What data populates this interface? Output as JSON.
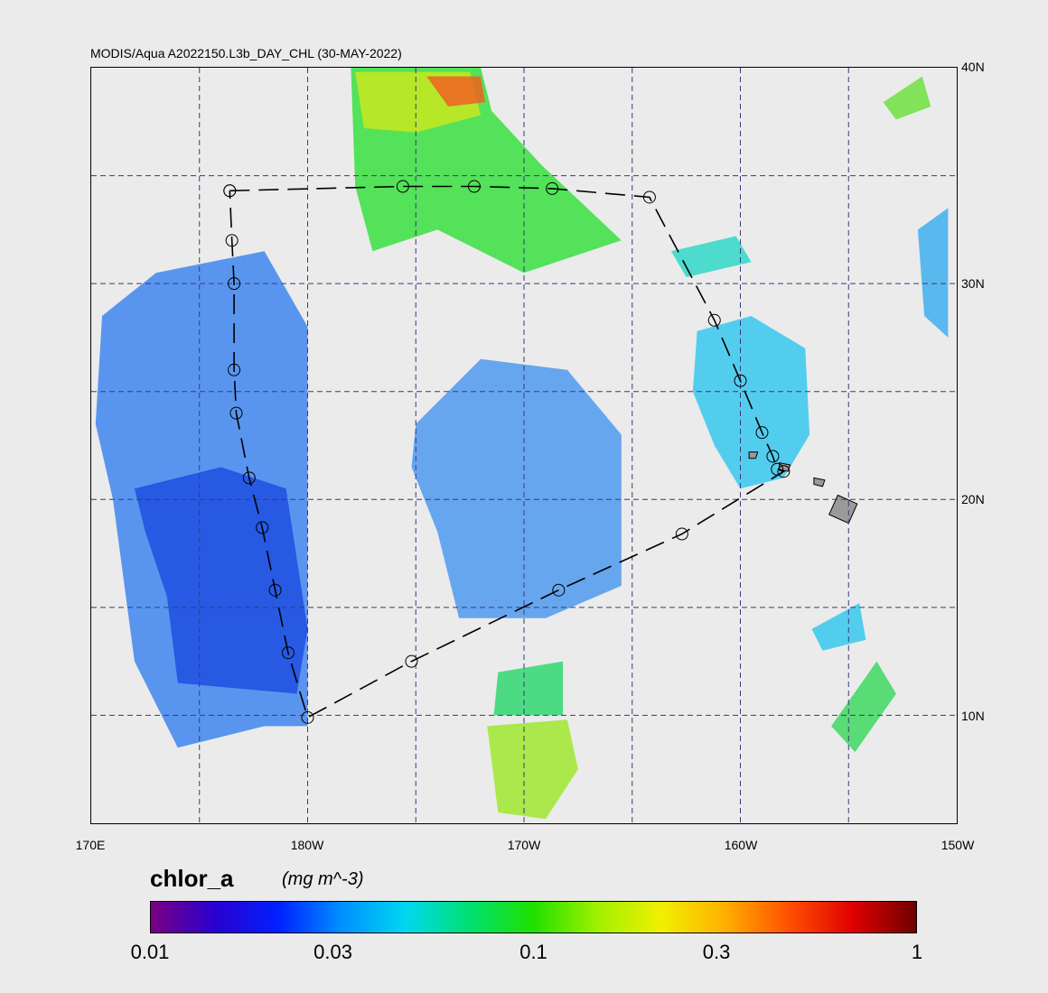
{
  "title": "MODIS/Aqua A2022150.L3b_DAY_CHL (30-MAY-2022)",
  "map": {
    "lat_labels": [
      {
        "label": "40N",
        "lat": 40
      },
      {
        "label": "30N",
        "lat": 30
      },
      {
        "label": "20N",
        "lat": 20
      },
      {
        "label": "10N",
        "lat": 10
      }
    ],
    "lon_labels": [
      {
        "label": "170E",
        "lon": 170
      },
      {
        "label": "180W",
        "lon": 180
      },
      {
        "label": "170W",
        "lon": 190
      },
      {
        "label": "160W",
        "lon": 200
      },
      {
        "label": "150W",
        "lon": 210
      }
    ],
    "lat_range": [
      5,
      40
    ],
    "lon_range": [
      170,
      210
    ],
    "gridlines": true,
    "grid_lon_step": 5,
    "grid_lat_step": 5,
    "grid_color": "#3a3a7a",
    "land_color": "#9a9a9a",
    "background_color": "#ebebeb"
  },
  "cruise_track": {
    "line_style": "dashed",
    "points": [
      {
        "lon": 176.4,
        "lat": 34.3
      },
      {
        "lon": 184.4,
        "lat": 34.5
      },
      {
        "lon": 187.7,
        "lat": 34.5
      },
      {
        "lon": 191.3,
        "lat": 34.4
      },
      {
        "lon": 195.8,
        "lat": 34.0
      },
      {
        "lon": 198.8,
        "lat": 28.3
      },
      {
        "lon": 200.0,
        "lat": 25.5
      },
      {
        "lon": 201.0,
        "lat": 23.1
      },
      {
        "lon": 201.5,
        "lat": 22.0
      },
      {
        "lon": 201.7,
        "lat": 21.4
      },
      {
        "lon": 202.0,
        "lat": 21.3
      },
      {
        "lon": 197.3,
        "lat": 18.4
      },
      {
        "lon": 191.6,
        "lat": 15.8
      },
      {
        "lon": 184.8,
        "lat": 12.5
      },
      {
        "lon": 180.0,
        "lat": 9.9
      },
      {
        "lon": 179.1,
        "lat": 12.9
      },
      {
        "lon": 178.5,
        "lat": 15.8
      },
      {
        "lon": 177.9,
        "lat": 18.7
      },
      {
        "lon": 177.3,
        "lat": 21.0
      },
      {
        "lon": 176.7,
        "lat": 24.0
      },
      {
        "lon": 176.6,
        "lat": 26.0
      },
      {
        "lon": 176.6,
        "lat": 30.0
      },
      {
        "lon": 176.5,
        "lat": 32.0
      },
      {
        "lon": 176.4,
        "lat": 34.3
      }
    ]
  },
  "colorbar": {
    "variable": "chlor_a",
    "units": "(mg m^-3)",
    "scale": "log",
    "range": [
      0.01,
      1
    ],
    "ticks": [
      {
        "label": "0.01",
        "value": 0.01
      },
      {
        "label": "0.03",
        "value": 0.03
      },
      {
        "label": "0.1",
        "value": 0.1
      },
      {
        "label": "0.3",
        "value": 0.3
      },
      {
        "label": "1",
        "value": 1
      }
    ],
    "colors": [
      "#7a0080",
      "#2a00d0",
      "#0020ff",
      "#0090ff",
      "#00d8f0",
      "#00e070",
      "#20e000",
      "#a0f000",
      "#f0f000",
      "#ffb000",
      "#ff5000",
      "#e00000",
      "#700000"
    ]
  },
  "chlorophyll_swaths": [
    {
      "name": "west",
      "color": "#3f86ee",
      "poly": [
        [
          170.5,
          28.5
        ],
        [
          173,
          30.5
        ],
        [
          178,
          31.5
        ],
        [
          180,
          28
        ],
        [
          180,
          9.5
        ],
        [
          178,
          9.5
        ],
        [
          174,
          8.5
        ],
        [
          172,
          12.5
        ],
        [
          171,
          20
        ],
        [
          170.2,
          23.5
        ]
      ]
    },
    {
      "name": "west-deep",
      "color": "#1f4fe0",
      "poly": [
        [
          172,
          20.5
        ],
        [
          176,
          21.5
        ],
        [
          179,
          20.5
        ],
        [
          180,
          14
        ],
        [
          179.5,
          11
        ],
        [
          174,
          11.5
        ],
        [
          173.5,
          15.5
        ],
        [
          172.5,
          18.5
        ]
      ]
    },
    {
      "name": "central",
      "color": "#4f9aee",
      "poly": [
        [
          185,
          23.5
        ],
        [
          188,
          26.5
        ],
        [
          192,
          26
        ],
        [
          194.5,
          23
        ],
        [
          194.5,
          16
        ],
        [
          191,
          14.5
        ],
        [
          187,
          14.5
        ],
        [
          186,
          18.5
        ],
        [
          184.8,
          21.5
        ]
      ]
    },
    {
      "name": "north-green",
      "color": "#38e040",
      "poly": [
        [
          182,
          40
        ],
        [
          188,
          40
        ],
        [
          188.5,
          38
        ],
        [
          190.8,
          35.5
        ],
        [
          194.5,
          32
        ],
        [
          190,
          30.5
        ],
        [
          186,
          32.5
        ],
        [
          183,
          31.5
        ],
        [
          182.2,
          34.5
        ]
      ]
    },
    {
      "name": "north-yellow",
      "color": "#c8e820",
      "poly": [
        [
          182.2,
          39.8
        ],
        [
          187.5,
          39.8
        ],
        [
          188,
          37.8
        ],
        [
          185,
          37
        ],
        [
          182.6,
          37.2
        ]
      ]
    },
    {
      "name": "north-red",
      "color": "#f06020",
      "poly": [
        [
          185.5,
          39.6
        ],
        [
          188,
          39.6
        ],
        [
          188.2,
          38.4
        ],
        [
          186.5,
          38.2
        ]
      ]
    },
    {
      "name": "hawaii-patch",
      "color": "#38c8ee",
      "poly": [
        [
          198,
          27.8
        ],
        [
          200.5,
          28.5
        ],
        [
          203,
          27
        ],
        [
          203.2,
          23
        ],
        [
          202,
          21
        ],
        [
          200,
          20.5
        ],
        [
          198.8,
          22.5
        ],
        [
          197.8,
          25
        ]
      ]
    },
    {
      "name": "northeast-patch",
      "color": "#30d8c8",
      "poly": [
        [
          196.8,
          31.5
        ],
        [
          199.8,
          32.2
        ],
        [
          200.5,
          31
        ],
        [
          197.5,
          30.3
        ]
      ]
    },
    {
      "name": "east-edge",
      "color": "#40b0f0",
      "poly": [
        [
          208.2,
          32.5
        ],
        [
          209.6,
          33.5
        ],
        [
          209.6,
          27.5
        ],
        [
          208.5,
          28.5
        ]
      ]
    },
    {
      "name": "south-central",
      "color": "#a0e830",
      "poly": [
        [
          188.3,
          9.5
        ],
        [
          192,
          9.8
        ],
        [
          192.5,
          7.5
        ],
        [
          191,
          5.2
        ],
        [
          188.8,
          5.5
        ]
      ]
    },
    {
      "name": "south-central-green",
      "color": "#30d870",
      "poly": [
        [
          188.8,
          12
        ],
        [
          191.8,
          12.5
        ],
        [
          191.8,
          10
        ],
        [
          188.6,
          10
        ]
      ]
    },
    {
      "name": "southeast",
      "color": "#40d860",
      "poly": [
        [
          204.2,
          9.5
        ],
        [
          206.3,
          12.5
        ],
        [
          207.2,
          11
        ],
        [
          205.3,
          8.3
        ]
      ]
    },
    {
      "name": "east-mid",
      "color": "#38c8ee",
      "poly": [
        [
          203.3,
          14
        ],
        [
          205.5,
          15.2
        ],
        [
          205.8,
          13.5
        ],
        [
          203.8,
          13
        ]
      ]
    },
    {
      "name": "ne-corner",
      "color": "#70e040",
      "poly": [
        [
          206.6,
          38.4
        ],
        [
          208.4,
          39.6
        ],
        [
          208.8,
          38.2
        ],
        [
          207.2,
          37.6
        ]
      ]
    }
  ],
  "islands": [
    {
      "name": "hawaii",
      "poly": [
        [
          204.5,
          20.2
        ],
        [
          205.4,
          19.8
        ],
        [
          205,
          18.9
        ],
        [
          204.1,
          19.3
        ]
      ]
    },
    {
      "name": "maui",
      "poly": [
        [
          203.4,
          21
        ],
        [
          203.9,
          20.9
        ],
        [
          203.8,
          20.6
        ],
        [
          203.4,
          20.7
        ]
      ]
    },
    {
      "name": "oahu",
      "poly": [
        [
          201.8,
          21.7
        ],
        [
          202.3,
          21.6
        ],
        [
          202.2,
          21.3
        ],
        [
          201.8,
          21.4
        ]
      ]
    },
    {
      "name": "kauai",
      "poly": [
        [
          200.4,
          22.2
        ],
        [
          200.8,
          22.2
        ],
        [
          200.7,
          21.9
        ],
        [
          200.4,
          21.9
        ]
      ]
    }
  ]
}
